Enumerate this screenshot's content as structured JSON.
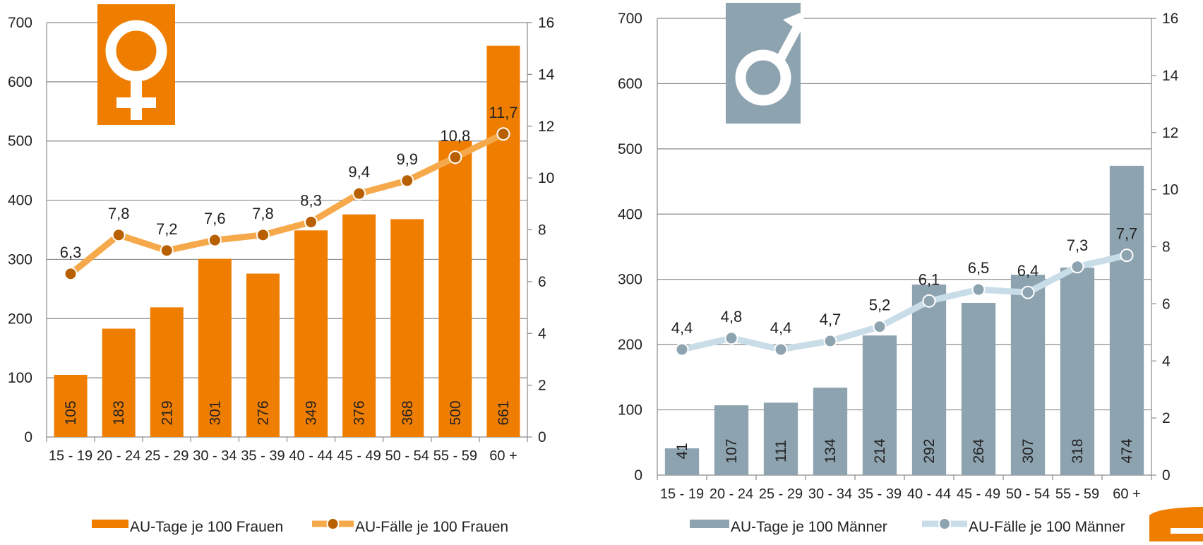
{
  "colors": {
    "female_bar": "#EE7D00",
    "female_line": "#F6A94A",
    "female_marker": "#B85F00",
    "male_bar": "#8DA3B0",
    "male_line": "#C9DDE8",
    "male_marker": "#8DA3B0",
    "grid": "#8a8a8a",
    "accent_corner": "#EE7D00"
  },
  "chart_data": [
    {
      "type": "bar",
      "icon": "female-symbol-icon",
      "categories": [
        "15 - 19",
        "20 - 24",
        "25 - 29",
        "30 - 34",
        "35 - 39",
        "40 - 44",
        "45 - 49",
        "50 - 54",
        "55 - 59",
        "60 +"
      ],
      "series": [
        {
          "name": "AU-Tage je 100 Frauen",
          "type": "bar",
          "axis": "left",
          "values": [
            105,
            183,
            219,
            301,
            276,
            349,
            376,
            368,
            500,
            661
          ],
          "labels": [
            "105",
            "183",
            "219",
            "301",
            "276",
            "349",
            "376",
            "368",
            "500",
            "661"
          ]
        },
        {
          "name": "AU-Fälle je 100 Frauen",
          "type": "line",
          "axis": "right",
          "values": [
            6.3,
            7.8,
            7.2,
            7.6,
            7.8,
            8.3,
            9.4,
            9.9,
            10.8,
            11.7
          ],
          "labels": [
            "6,3",
            "7,8",
            "7,2",
            "7,6",
            "7,8",
            "8,3",
            "9,4",
            "9,9",
            "10,8",
            "11,7"
          ]
        }
      ],
      "y_left": {
        "min": 0,
        "max": 700,
        "ticks": [
          "0",
          "100",
          "200",
          "300",
          "400",
          "500",
          "600",
          "700"
        ]
      },
      "y_right": {
        "min": 0,
        "max": 16,
        "ticks": [
          "0",
          "2",
          "4",
          "6",
          "8",
          "10",
          "12",
          "14",
          "16"
        ]
      },
      "grid": true,
      "legend_position": "bottom"
    },
    {
      "type": "bar",
      "icon": "male-symbol-icon",
      "categories": [
        "15 - 19",
        "20 - 24",
        "25 - 29",
        "30 - 34",
        "35 - 39",
        "40 - 44",
        "45 - 49",
        "50 - 54",
        "55 - 59",
        "60 +"
      ],
      "series": [
        {
          "name": "AU-Tage je 100 Männer",
          "type": "bar",
          "axis": "left",
          "values": [
            41,
            107,
            111,
            134,
            214,
            292,
            264,
            307,
            318,
            474
          ],
          "labels": [
            "41",
            "107",
            "111",
            "134",
            "214",
            "292",
            "264",
            "307",
            "318",
            "474"
          ]
        },
        {
          "name": "AU-Fälle je 100 Männer",
          "type": "line",
          "axis": "right",
          "values": [
            4.4,
            4.8,
            4.4,
            4.7,
            5.2,
            6.1,
            6.5,
            6.4,
            7.3,
            7.7
          ],
          "labels": [
            "4,4",
            "4,8",
            "4,4",
            "4,7",
            "5,2",
            "6,1",
            "6,5",
            "6,4",
            "7,3",
            "7,7"
          ]
        }
      ],
      "y_left": {
        "min": 0,
        "max": 700,
        "ticks": [
          "0",
          "100",
          "200",
          "300",
          "400",
          "500",
          "600",
          "700"
        ]
      },
      "y_right": {
        "min": 0,
        "max": 16,
        "ticks": [
          "0",
          "2",
          "4",
          "6",
          "8",
          "10",
          "12",
          "14",
          "16"
        ]
      },
      "grid": true,
      "legend_position": "bottom"
    }
  ]
}
